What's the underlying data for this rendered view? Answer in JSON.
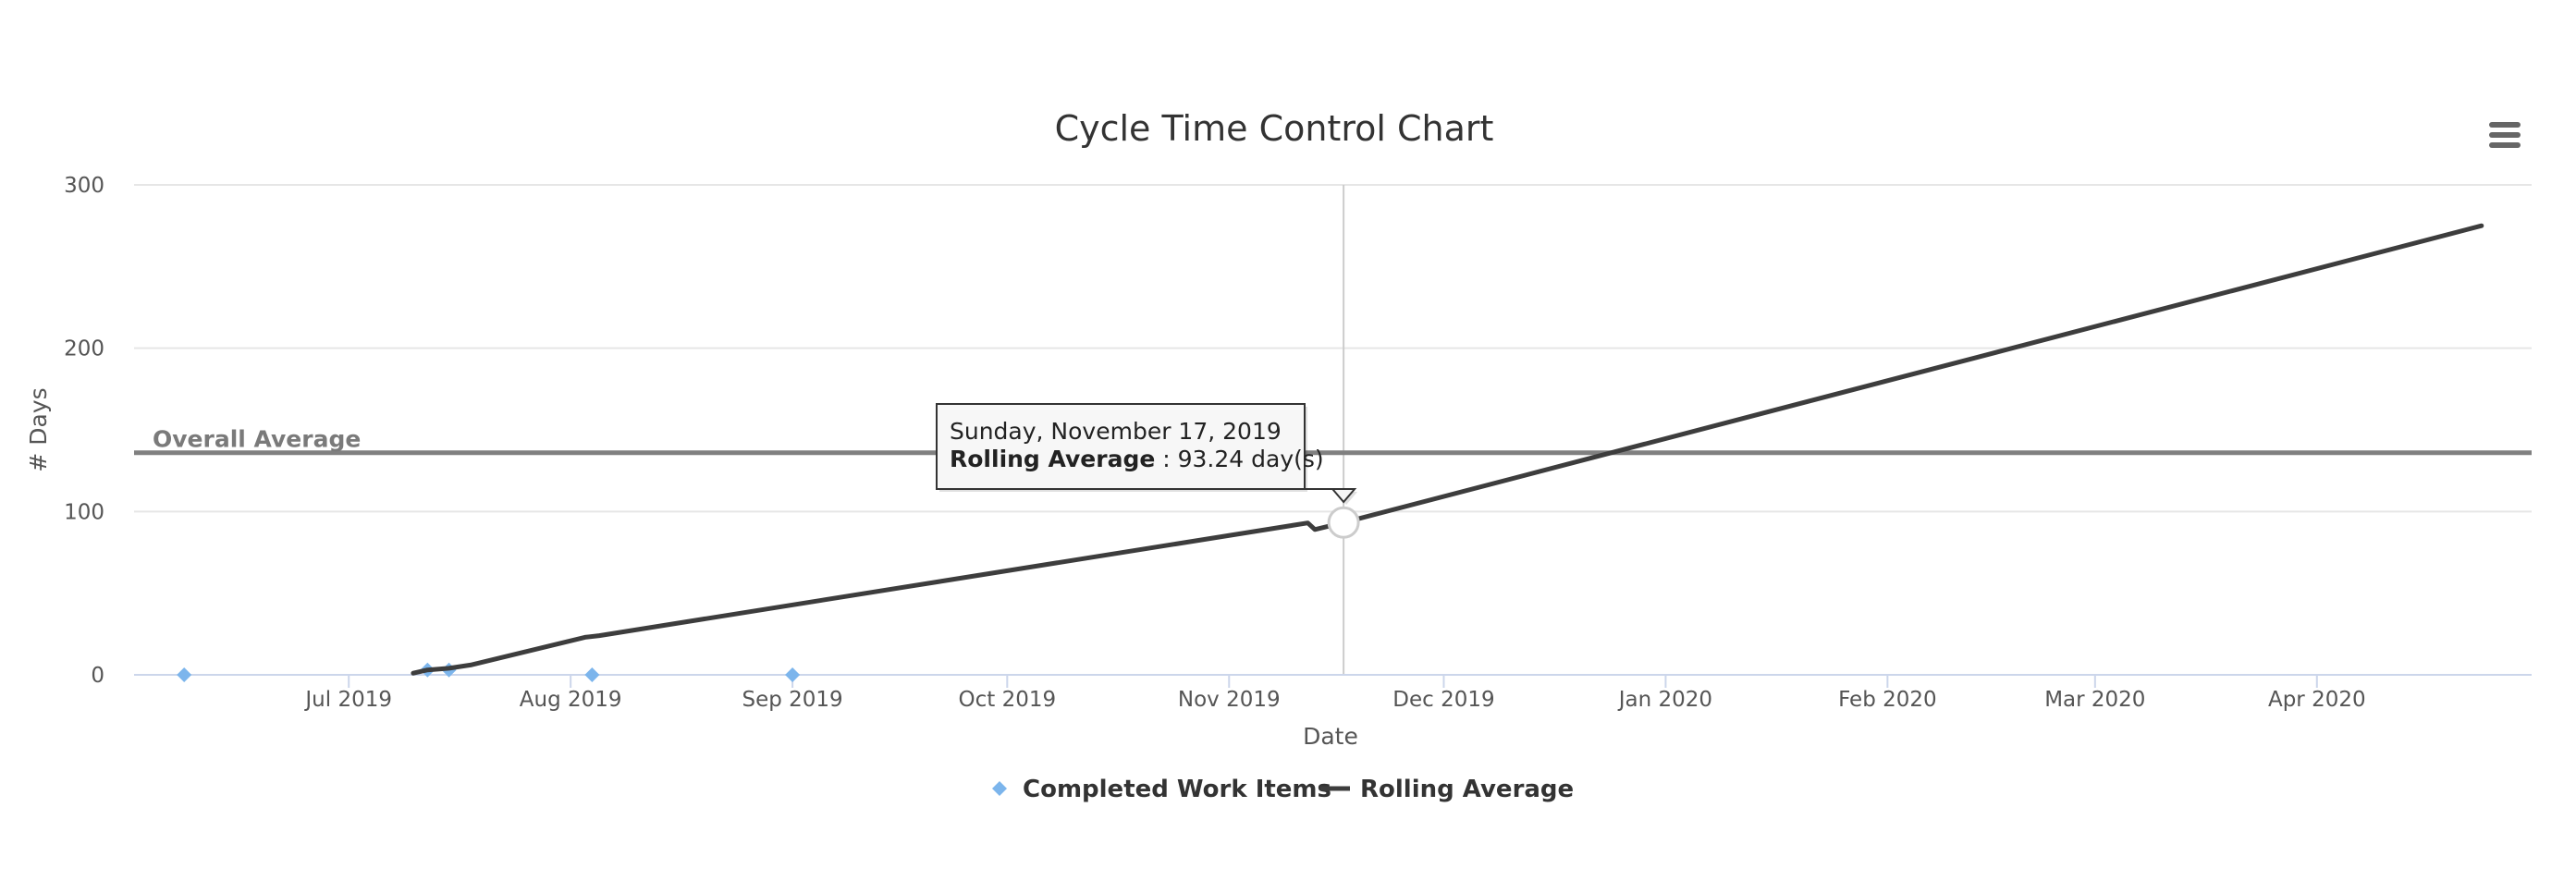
{
  "chart_data": {
    "type": "scatter",
    "title": "Cycle Time Control Chart",
    "xlabel": "Date",
    "ylabel": "# Days",
    "x_axis_type": "date",
    "xlim": [
      "2019-06-01",
      "2020-05-01"
    ],
    "ylim": [
      0,
      300
    ],
    "y_ticks": [
      0,
      100,
      200,
      300
    ],
    "x_ticks": [
      {
        "date": "2019-07-01",
        "label": "Jul 2019"
      },
      {
        "date": "2019-08-01",
        "label": "Aug 2019"
      },
      {
        "date": "2019-09-01",
        "label": "Sep 2019"
      },
      {
        "date": "2019-10-01",
        "label": "Oct 2019"
      },
      {
        "date": "2019-11-01",
        "label": "Nov 2019"
      },
      {
        "date": "2019-12-01",
        "label": "Dec 2019"
      },
      {
        "date": "2020-01-01",
        "label": "Jan 2020"
      },
      {
        "date": "2020-02-01",
        "label": "Feb 2020"
      },
      {
        "date": "2020-03-01",
        "label": "Mar 2020"
      },
      {
        "date": "2020-04-01",
        "label": "Apr 2020"
      }
    ],
    "grid": true,
    "legend_position": "bottom-center",
    "series": [
      {
        "name": "Completed Work Items",
        "type": "scatter",
        "marker": "diamond",
        "color": "#7cb5ec",
        "points": [
          {
            "x": "2019-06-08",
            "y": 0
          },
          {
            "x": "2019-07-12",
            "y": 3
          },
          {
            "x": "2019-07-15",
            "y": 3
          },
          {
            "x": "2019-08-04",
            "y": 0
          },
          {
            "x": "2019-09-01",
            "y": 0
          }
        ]
      },
      {
        "name": "Rolling Average",
        "type": "line",
        "color": "#3d3d3d",
        "points": [
          {
            "x": "2019-07-10",
            "y": 1
          },
          {
            "x": "2019-07-12",
            "y": 3
          },
          {
            "x": "2019-07-15",
            "y": 4
          },
          {
            "x": "2019-07-18",
            "y": 6
          },
          {
            "x": "2019-08-03",
            "y": 23
          },
          {
            "x": "2019-08-05",
            "y": 24
          },
          {
            "x": "2019-11-12",
            "y": 93
          },
          {
            "x": "2019-11-13",
            "y": 89
          },
          {
            "x": "2019-11-17",
            "y": 93.24
          },
          {
            "x": "2020-04-24",
            "y": 275
          }
        ]
      }
    ],
    "plot_lines": [
      {
        "label": "Overall Average",
        "y": 136,
        "color": "#808080"
      }
    ],
    "crosshair_x": "2019-11-17",
    "tooltip": {
      "date_label": "Sunday, November 17, 2019",
      "series_label": "Rolling Average",
      "value_text": " : 93.24 day(s)",
      "x": "2019-11-17",
      "y": 93.24
    }
  },
  "icons": {
    "menu": "hamburger-menu-icon"
  }
}
